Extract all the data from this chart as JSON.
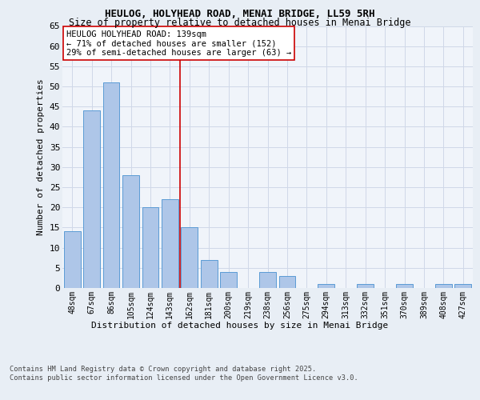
{
  "title1": "HEULOG, HOLYHEAD ROAD, MENAI BRIDGE, LL59 5RH",
  "title2": "Size of property relative to detached houses in Menai Bridge",
  "xlabel": "Distribution of detached houses by size in Menai Bridge",
  "ylabel": "Number of detached properties",
  "categories": [
    "48sqm",
    "67sqm",
    "86sqm",
    "105sqm",
    "124sqm",
    "143sqm",
    "162sqm",
    "181sqm",
    "200sqm",
    "219sqm",
    "238sqm",
    "256sqm",
    "275sqm",
    "294sqm",
    "313sqm",
    "332sqm",
    "351sqm",
    "370sqm",
    "389sqm",
    "408sqm",
    "427sqm"
  ],
  "values": [
    14,
    44,
    51,
    28,
    20,
    22,
    15,
    7,
    4,
    0,
    4,
    3,
    0,
    1,
    0,
    1,
    0,
    1,
    0,
    1,
    1
  ],
  "bar_color": "#aec6e8",
  "bar_edge_color": "#5b9bd5",
  "grid_color": "#d0d8e8",
  "vline_x": 5.5,
  "vline_color": "#cc0000",
  "annotation_text": "HEULOG HOLYHEAD ROAD: 139sqm\n← 71% of detached houses are smaller (152)\n29% of semi-detached houses are larger (63) →",
  "annotation_box_color": "#ffffff",
  "annotation_box_edge": "#cc0000",
  "ylim": [
    0,
    65
  ],
  "yticks": [
    0,
    5,
    10,
    15,
    20,
    25,
    30,
    35,
    40,
    45,
    50,
    55,
    60,
    65
  ],
  "footer": "Contains HM Land Registry data © Crown copyright and database right 2025.\nContains public sector information licensed under the Open Government Licence v3.0.",
  "bg_color": "#e8eef5",
  "plot_bg_color": "#f0f4fa"
}
